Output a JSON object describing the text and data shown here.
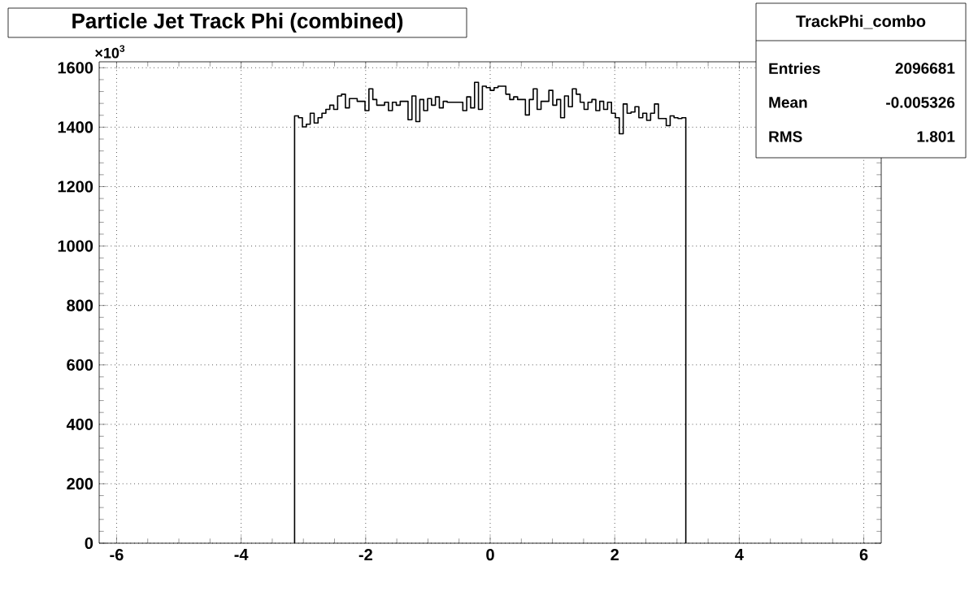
{
  "chart_data": {
    "type": "histogram",
    "title": "Particle Jet Track Phi (combined)",
    "bins": [
      -3.1416,
      -3.0788,
      -3.0159,
      -2.9531,
      -2.8903,
      -2.8274,
      -2.7646,
      -2.7018,
      -2.6389,
      -2.5761,
      -2.5133,
      -2.4504,
      -2.3876,
      -2.3248,
      -2.2619,
      -2.1991,
      -2.1363,
      -2.0735,
      -2.0106,
      -1.9478,
      -1.885,
      -1.8221,
      -1.7593,
      -1.6965,
      -1.6336,
      -1.5708,
      -1.508,
      -1.4451,
      -1.3823,
      -1.3195,
      -1.2566,
      -1.1938,
      -1.131,
      -1.0681,
      -1.0053,
      -0.9425,
      -0.8796,
      -0.8168,
      -0.754,
      -0.6912,
      -0.6283,
      -0.5655,
      -0.5027,
      -0.4398,
      -0.377,
      -0.3142,
      -0.2513,
      -0.1885,
      -0.1257,
      -0.0628,
      0,
      0.0628,
      0.1257,
      0.1885,
      0.2513,
      0.3142,
      0.377,
      0.4398,
      0.5027,
      0.5655,
      0.6283,
      0.6912,
      0.754,
      0.8168,
      0.8796,
      0.9425,
      1.0053,
      1.0681,
      1.131,
      1.1938,
      1.2566,
      1.3195,
      1.3823,
      1.4451,
      1.508,
      1.5708,
      1.6336,
      1.6965,
      1.7593,
      1.8221,
      1.885,
      1.9478,
      2.0106,
      2.0735,
      2.1363,
      2.1991,
      2.2619,
      2.3248,
      2.3876,
      2.4504,
      2.5133,
      2.5761,
      2.6389,
      2.7018,
      2.7646,
      2.8274,
      2.8903,
      2.9531,
      3.0159,
      3.0788,
      3.1416
    ],
    "values": [
      1438,
      1432,
      1401,
      1410,
      1447,
      1414,
      1432,
      1447,
      1460,
      1474,
      1460,
      1505,
      1511,
      1465,
      1496,
      1496,
      1487,
      1487,
      1456,
      1529,
      1493,
      1474,
      1474,
      1484,
      1456,
      1484,
      1474,
      1487,
      1487,
      1425,
      1505,
      1419,
      1493,
      1456,
      1496,
      1474,
      1502,
      1465,
      1487,
      1484,
      1484,
      1484,
      1484,
      1456,
      1502,
      1465,
      1551,
      1460,
      1538,
      1533,
      1524,
      1533,
      1538,
      1538,
      1511,
      1493,
      1502,
      1493,
      1493,
      1441,
      1493,
      1529,
      1460,
      1487,
      1487,
      1524,
      1474,
      1493,
      1432,
      1505,
      1469,
      1529,
      1511,
      1484,
      1460,
      1484,
      1493,
      1456,
      1487,
      1460,
      1484,
      1447,
      1432,
      1378,
      1478,
      1447,
      1451,
      1469,
      1432,
      1447,
      1423,
      1447,
      1478,
      1429,
      1429,
      1405,
      1438,
      1432,
      1429,
      1432
    ],
    "color": "#000000",
    "xlim": [
      -6.28,
      6.28
    ],
    "xticks": [
      -6,
      -4,
      -2,
      0,
      2,
      4,
      6
    ],
    "ylim": [
      0,
      1620
    ],
    "yticks": [
      0,
      200,
      400,
      600,
      800,
      1000,
      1200,
      1400,
      1600
    ],
    "grid": true,
    "annotations": [
      "×10$^{3}$",
      "TrackPhi_combo",
      "Entries",
      "2096681",
      "Mean",
      "-0.005326",
      "RMS",
      "1.801"
    ]
  }
}
